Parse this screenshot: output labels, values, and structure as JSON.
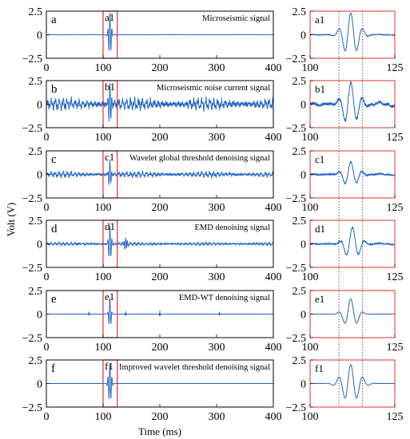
{
  "figure": {
    "ylabel": "Volt (V)",
    "xlabel": "Time (ms)",
    "colors": {
      "signal": "#1f63c4",
      "highlight": "#e0322a",
      "frame": "#000000",
      "guide": "#333333"
    }
  },
  "chart_data": [
    {
      "type": "line",
      "id": "a",
      "letter": "a",
      "window_label": "a1",
      "title": "Microseismic signal",
      "xlim": [
        0,
        400
      ],
      "ylim": [
        -2.5,
        2.5
      ],
      "xticks": [
        0,
        100,
        200,
        300,
        400
      ],
      "yticks": [
        2.5,
        0,
        -2.5
      ],
      "window": [
        100,
        125
      ],
      "noise": 0.03,
      "spikes": [],
      "events": [
        {
          "center": 112,
          "amp": 2.3,
          "period": 3.6,
          "width": 2.2
        }
      ]
    },
    {
      "type": "line",
      "id": "a1",
      "letter": "a1",
      "xlim": [
        100,
        125
      ],
      "ylim": [
        -2.5,
        2.5
      ],
      "xticks": [
        100,
        125
      ],
      "yticks": [
        2.5,
        0,
        -2.5
      ],
      "noise": 0.08,
      "spikes": [],
      "events": [
        {
          "center": 112,
          "amp": 2.3,
          "period": 3.6,
          "width": 2.2
        }
      ]
    },
    {
      "type": "line",
      "id": "b",
      "letter": "b",
      "window_label": "b1",
      "title": "Microseismic noise current signal",
      "xlim": [
        0,
        400
      ],
      "ylim": [
        -2.5,
        2.5
      ],
      "xticks": [
        0,
        100,
        200,
        300,
        400
      ],
      "yticks": [
        2.5,
        0,
        -2.5
      ],
      "window": [
        100,
        125
      ],
      "noise": 0.75,
      "spikes": [],
      "events": [
        {
          "center": 112,
          "amp": 2.2,
          "period": 3.6,
          "width": 2.2
        }
      ]
    },
    {
      "type": "line",
      "id": "b1",
      "letter": "b1",
      "xlim": [
        100,
        125
      ],
      "ylim": [
        -2.5,
        2.5
      ],
      "xticks": [
        100,
        125
      ],
      "yticks": [
        2.5,
        0,
        -2.5
      ],
      "noise": 0.5,
      "spikes": [],
      "events": [
        {
          "center": 112,
          "amp": 2.2,
          "period": 3.6,
          "width": 2.2
        }
      ]
    },
    {
      "type": "line",
      "id": "c",
      "letter": "c",
      "window_label": "c1",
      "title": "Wavelet global threshold denoising signal",
      "xlim": [
        0,
        400
      ],
      "ylim": [
        -2.5,
        2.5
      ],
      "xticks": [
        0,
        100,
        200,
        300,
        400
      ],
      "yticks": [
        2.5,
        0,
        -2.5
      ],
      "window": [
        100,
        125
      ],
      "noise": 0.35,
      "spikes": [],
      "events": [
        {
          "center": 112,
          "amp": 1.4,
          "period": 3.6,
          "width": 2.0
        }
      ]
    },
    {
      "type": "line",
      "id": "c1",
      "letter": "c1",
      "xlim": [
        100,
        125
      ],
      "ylim": [
        -2.5,
        2.5
      ],
      "xticks": [
        100,
        125
      ],
      "yticks": [
        2.5,
        0,
        -2.5
      ],
      "noise": 0.2,
      "spikes": [],
      "events": [
        {
          "center": 112,
          "amp": 1.3,
          "period": 3.6,
          "width": 2.0
        }
      ]
    },
    {
      "type": "line",
      "id": "d",
      "letter": "d",
      "window_label": "d1",
      "title": "EMD denoising signal",
      "xlim": [
        0,
        400
      ],
      "ylim": [
        -2.5,
        2.5
      ],
      "xticks": [
        0,
        100,
        200,
        300,
        400
      ],
      "yticks": [
        2.5,
        0,
        -2.5
      ],
      "window": [
        100,
        125
      ],
      "noise": 0.18,
      "spikes": [],
      "events": [
        {
          "center": 112,
          "amp": 1.9,
          "period": 3.8,
          "width": 2.2
        },
        {
          "center": 140,
          "amp": 0.6,
          "period": 3.0,
          "width": 2.5
        }
      ]
    },
    {
      "type": "line",
      "id": "d1",
      "letter": "d1",
      "xlim": [
        100,
        125
      ],
      "ylim": [
        -2.5,
        2.5
      ],
      "xticks": [
        100,
        125
      ],
      "yticks": [
        2.5,
        0,
        -2.5
      ],
      "noise": 0.15,
      "spikes": [],
      "events": [
        {
          "center": 112.5,
          "amp": 1.7,
          "period": 3.8,
          "width": 2.0
        }
      ]
    },
    {
      "type": "line",
      "id": "e",
      "letter": "e",
      "window_label": "e1",
      "title": "EMD-WT denoising signal",
      "xlim": [
        0,
        400
      ],
      "ylim": [
        -2.5,
        2.5
      ],
      "xticks": [
        0,
        100,
        200,
        300,
        400
      ],
      "yticks": [
        2.5,
        0,
        -2.5
      ],
      "window": [
        100,
        125
      ],
      "noise": 0.0,
      "spikes": [
        [
          75,
          0.3
        ],
        [
          140,
          0.3
        ],
        [
          200,
          0.4
        ],
        [
          305,
          0.3
        ]
      ],
      "events": [
        {
          "center": 112,
          "amp": 1.7,
          "period": 3.8,
          "width": 1.8
        }
      ]
    },
    {
      "type": "line",
      "id": "e1",
      "letter": "e1",
      "xlim": [
        100,
        125
      ],
      "ylim": [
        -2.5,
        2.5
      ],
      "xticks": [
        100,
        125
      ],
      "yticks": [
        2.5,
        0,
        -2.5
      ],
      "noise": 0.0,
      "spikes": [],
      "events": [
        {
          "center": 112,
          "amp": 1.6,
          "period": 3.8,
          "width": 1.8
        }
      ]
    },
    {
      "type": "line",
      "id": "f",
      "letter": "f",
      "window_label": "f1",
      "title": "Improved wavelet threshold denoising signal",
      "xlim": [
        0,
        400
      ],
      "ylim": [
        -2.5,
        2.5
      ],
      "xticks": [
        0,
        100,
        200,
        300,
        400
      ],
      "yticks": [
        2.5,
        0,
        -2.5
      ],
      "window": [
        100,
        125
      ],
      "noise": 0.0,
      "spikes": [],
      "events": [
        {
          "center": 112,
          "amp": 2.1,
          "period": 3.6,
          "width": 2.4
        }
      ]
    },
    {
      "type": "line",
      "id": "f1",
      "letter": "f1",
      "xlim": [
        100,
        125
      ],
      "ylim": [
        -2.5,
        2.5
      ],
      "xticks": [
        100,
        125
      ],
      "yticks": [
        2.5,
        0,
        -2.5
      ],
      "noise": 0.0,
      "spikes": [],
      "events": [
        {
          "center": 112,
          "amp": 2.0,
          "period": 3.6,
          "width": 2.4
        }
      ]
    }
  ]
}
